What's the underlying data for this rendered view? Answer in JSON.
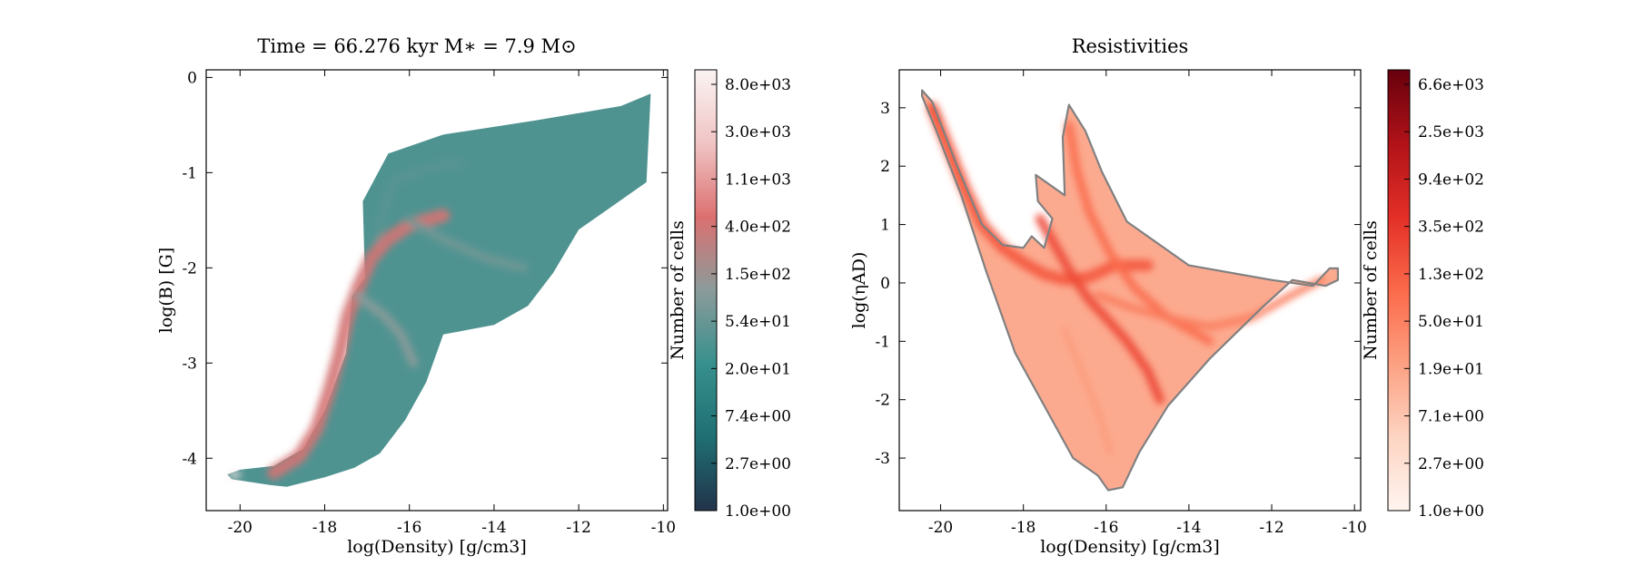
{
  "chart_data": [
    {
      "type": "heatmap",
      "title": "Time = 66.276 kyr    M∗ = 7.9 M⊙",
      "xlabel": "log(Density) [g/cm3]",
      "ylabel": "log(B) [G]",
      "xlim": [
        -20.8,
        -9.9
      ],
      "ylim": [
        -4.55,
        0.08
      ],
      "x_ticks": [
        -20,
        -18,
        -16,
        -14,
        -12,
        -10
      ],
      "x_tick_labels": [
        "-20",
        "-18",
        "-16",
        "-14",
        "-12",
        "-10"
      ],
      "y_ticks": [
        0,
        -1,
        -2,
        -3,
        -4
      ],
      "y_tick_labels": [
        "0",
        "-1",
        "-2",
        "-3",
        "-4"
      ],
      "colorbar": {
        "label": "Number of cells",
        "scale": "log",
        "tick_labels": [
          "8.0e+03",
          "3.0e+03",
          "1.1e+03",
          "4.0e+02",
          "1.5e+02",
          "5.4e+01",
          "2.0e+01",
          "7.4e+00",
          "2.7e+00",
          "1.0e+00"
        ],
        "colormap": [
          "#22334a",
          "#1f6f72",
          "#37908d",
          "#8b9b9a",
          "#dc7070",
          "#f0c4c4",
          "#fbf3f3"
        ]
      },
      "region_outline": [
        [
          -20.3,
          -4.17
        ],
        [
          -20.0,
          -4.12
        ],
        [
          -19.2,
          -4.08
        ],
        [
          -18.5,
          -3.9
        ],
        [
          -18.0,
          -3.5
        ],
        [
          -17.5,
          -2.9
        ],
        [
          -17.35,
          -2.3
        ],
        [
          -17.05,
          -2.1
        ],
        [
          -17.1,
          -1.3
        ],
        [
          -16.5,
          -0.8
        ],
        [
          -15.2,
          -0.6
        ],
        [
          -13.0,
          -0.45
        ],
        [
          -11.0,
          -0.3
        ],
        [
          -10.3,
          -0.17
        ],
        [
          -10.4,
          -1.1
        ],
        [
          -11.2,
          -1.35
        ],
        [
          -12.0,
          -1.6
        ],
        [
          -12.6,
          -2.05
        ],
        [
          -13.2,
          -2.4
        ],
        [
          -14.0,
          -2.6
        ],
        [
          -15.2,
          -2.7
        ],
        [
          -15.6,
          -3.2
        ],
        [
          -16.1,
          -3.6
        ],
        [
          -16.7,
          -3.95
        ],
        [
          -17.3,
          -4.1
        ],
        [
          -18.0,
          -4.2
        ],
        [
          -18.9,
          -4.3
        ],
        [
          -19.3,
          -4.28
        ],
        [
          -20.2,
          -4.22
        ]
      ],
      "density_ridges": [
        {
          "level": 0.65,
          "width": 0.32,
          "path": [
            [
              -19.2,
              -4.15
            ],
            [
              -18.6,
              -3.98
            ],
            [
              -18.2,
              -3.7
            ],
            [
              -17.9,
              -3.3
            ],
            [
              -17.65,
              -2.9
            ],
            [
              -17.45,
              -2.5
            ],
            [
              -17.2,
              -2.2
            ],
            [
              -16.9,
              -1.9
            ],
            [
              -16.5,
              -1.7
            ],
            [
              -16.0,
              -1.55
            ],
            [
              -15.2,
              -1.45
            ]
          ]
        },
        {
          "level": 0.5,
          "width": 0.22,
          "path": [
            [
              -17.2,
              -2.3
            ],
            [
              -16.6,
              -2.5
            ],
            [
              -16.2,
              -2.7
            ],
            [
              -15.9,
              -3.0
            ]
          ]
        },
        {
          "level": 0.45,
          "width": 0.2,
          "path": [
            [
              -16.0,
              -1.5
            ],
            [
              -15.2,
              -1.7
            ],
            [
              -14.2,
              -1.9
            ],
            [
              -13.3,
              -2.0
            ]
          ]
        },
        {
          "level": 0.4,
          "width": 0.18,
          "path": [
            [
              -16.8,
              -1.7
            ],
            [
              -16.4,
              -1.1
            ],
            [
              -15.6,
              -0.95
            ],
            [
              -14.8,
              -0.9
            ]
          ]
        },
        {
          "level": 0.95,
          "width": 0.14,
          "path": [
            [
              -20.2,
              -4.18
            ],
            [
              -20.05,
              -4.17
            ]
          ]
        }
      ]
    },
    {
      "type": "heatmap",
      "title": "Resistivities",
      "xlabel": "log(Density) [g/cm3]",
      "ylabel": "log(ηAD)",
      "xlim": [
        -21.0,
        -9.85
      ],
      "ylim": [
        -3.9,
        3.65
      ],
      "x_ticks": [
        -20,
        -18,
        -16,
        -14,
        -12,
        -10
      ],
      "x_tick_labels": [
        "-20",
        "-18",
        "-16",
        "-14",
        "-12",
        "-10"
      ],
      "y_ticks": [
        3,
        2,
        1,
        0,
        -1,
        -2,
        -3
      ],
      "y_tick_labels": [
        "3",
        "2",
        "1",
        "0",
        "-1",
        "-2",
        "-3"
      ],
      "colorbar": {
        "label": "Number of cells",
        "scale": "log",
        "tick_labels": [
          "6.6e+03",
          "2.5e+03",
          "9.4e+02",
          "3.5e+02",
          "1.3e+02",
          "5.0e+01",
          "1.9e+01",
          "7.1e+00",
          "2.7e+00",
          "1.0e+00"
        ],
        "colormap": [
          "#fff5f0",
          "#fdd4c2",
          "#fca082",
          "#fb6a4a",
          "#e32f27",
          "#b11218",
          "#67000d"
        ]
      },
      "region_outline": [
        [
          -20.45,
          3.3
        ],
        [
          -20.2,
          3.1
        ],
        [
          -19.6,
          2.0
        ],
        [
          -19.0,
          1.0
        ],
        [
          -18.5,
          0.65
        ],
        [
          -18.0,
          0.6
        ],
        [
          -17.8,
          0.8
        ],
        [
          -17.5,
          0.6
        ],
        [
          -17.3,
          1.1
        ],
        [
          -17.65,
          1.4
        ],
        [
          -17.7,
          1.85
        ],
        [
          -17.5,
          1.75
        ],
        [
          -17.0,
          1.5
        ],
        [
          -17.05,
          2.5
        ],
        [
          -16.9,
          3.05
        ],
        [
          -16.5,
          2.6
        ],
        [
          -16.1,
          1.9
        ],
        [
          -15.5,
          1.05
        ],
        [
          -14.0,
          0.3
        ],
        [
          -12.0,
          0.05
        ],
        [
          -11.0,
          -0.05
        ],
        [
          -10.6,
          0.25
        ],
        [
          -10.4,
          0.25
        ],
        [
          -10.4,
          0.05
        ],
        [
          -10.7,
          -0.05
        ],
        [
          -11.5,
          0.05
        ],
        [
          -12.2,
          -0.4
        ],
        [
          -13.5,
          -1.3
        ],
        [
          -14.5,
          -2.1
        ],
        [
          -15.2,
          -2.9
        ],
        [
          -15.6,
          -3.5
        ],
        [
          -15.95,
          -3.55
        ],
        [
          -16.2,
          -3.3
        ],
        [
          -16.8,
          -3.0
        ],
        [
          -17.5,
          -2.1
        ],
        [
          -18.2,
          -1.2
        ],
        [
          -18.9,
          0.2
        ],
        [
          -19.5,
          1.5
        ],
        [
          -20.1,
          2.6
        ],
        [
          -20.45,
          3.2
        ]
      ],
      "density_ridges": [
        {
          "level": 0.95,
          "width": 0.12,
          "path": [
            [
              -20.2,
              3.0
            ],
            [
              -20.0,
              2.8
            ]
          ]
        },
        {
          "level": 0.55,
          "width": 0.28,
          "path": [
            [
              -20.2,
              3.0
            ],
            [
              -19.8,
              2.3
            ],
            [
              -19.4,
              1.6
            ],
            [
              -19.0,
              1.0
            ],
            [
              -18.5,
              0.6
            ],
            [
              -18.0,
              0.35
            ],
            [
              -17.5,
              0.15
            ],
            [
              -17.0,
              0.05
            ],
            [
              -16.4,
              0.1
            ],
            [
              -15.8,
              0.3
            ],
            [
              -15.0,
              0.3
            ]
          ]
        },
        {
          "level": 0.6,
          "width": 0.22,
          "path": [
            [
              -17.6,
              1.1
            ],
            [
              -17.2,
              0.6
            ],
            [
              -16.8,
              0.1
            ],
            [
              -16.4,
              -0.3
            ],
            [
              -16.0,
              -0.6
            ],
            [
              -15.5,
              -1.0
            ],
            [
              -15.0,
              -1.5
            ],
            [
              -14.7,
              -2.0
            ]
          ]
        },
        {
          "level": 0.5,
          "width": 0.2,
          "path": [
            [
              -16.9,
              2.7
            ],
            [
              -16.7,
              1.9
            ],
            [
              -16.4,
              1.2
            ],
            [
              -15.9,
              0.5
            ],
            [
              -15.3,
              -0.1
            ],
            [
              -14.5,
              -0.6
            ],
            [
              -13.5,
              -1.0
            ]
          ]
        },
        {
          "level": 0.45,
          "width": 0.18,
          "path": [
            [
              -16.2,
              -0.2
            ],
            [
              -15.5,
              -0.4
            ],
            [
              -14.5,
              -0.6
            ],
            [
              -13.5,
              -0.75
            ],
            [
              -12.5,
              -0.6
            ],
            [
              -11.5,
              -0.2
            ],
            [
              -10.8,
              0.05
            ]
          ]
        },
        {
          "level": 0.35,
          "width": 0.16,
          "path": [
            [
              -17.0,
              -0.8
            ],
            [
              -16.6,
              -1.5
            ],
            [
              -16.2,
              -2.2
            ],
            [
              -15.9,
              -2.9
            ]
          ]
        }
      ]
    }
  ]
}
